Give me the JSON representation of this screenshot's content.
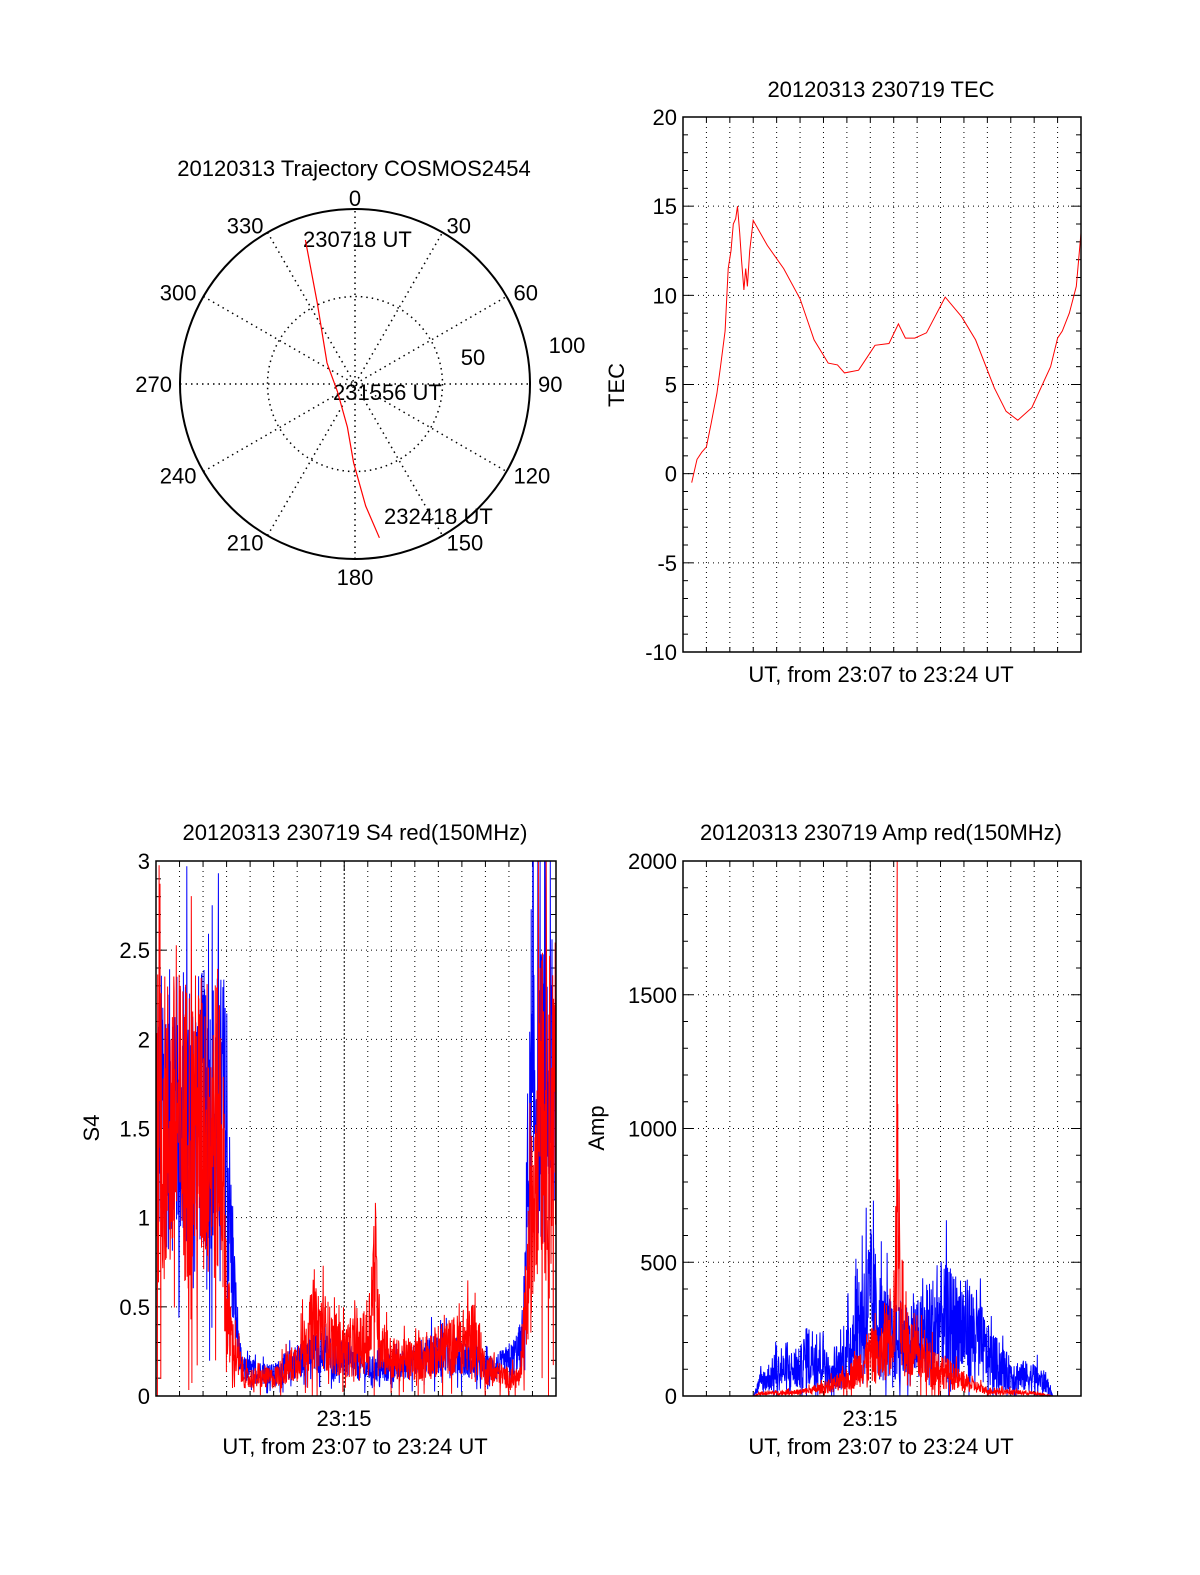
{
  "colors": {
    "red": "#ff0000",
    "blue": "#0000ff",
    "axis": "#000000"
  },
  "chart_data": [
    {
      "type": "polar",
      "title": "20120313 Trajectory COSMOS2454",
      "angle_ticks": [
        "0",
        "30",
        "60",
        "90",
        "120",
        "150",
        "180",
        "210",
        "240",
        "270",
        "300",
        "330"
      ],
      "radial_ticks": [
        "50",
        "100"
      ],
      "rlim": [
        0,
        100
      ],
      "trajectory": [
        [
          341,
          87
        ],
        [
          335,
          51
        ],
        [
          307,
          20
        ],
        [
          245,
          11
        ],
        [
          190,
          25
        ],
        [
          181,
          45
        ],
        [
          175,
          70
        ],
        [
          171,
          89
        ]
      ],
      "annotations": {
        "start": "230718 UT",
        "mid": "231556 UT",
        "end": "232418 UT"
      }
    },
    {
      "type": "line",
      "title": "20120313 230719 TEC",
      "xlabel": "UT, from 23:07 to 23:24 UT",
      "ylabel": "TEC",
      "ylim": [
        -10,
        20
      ],
      "xlim_minutes": [
        0,
        17
      ],
      "yticks": [
        "-10",
        "-5",
        "0",
        "5",
        "10",
        "15",
        "20"
      ],
      "grid": true,
      "series": [
        {
          "name": "TEC",
          "color": "red",
          "x": [
            0.37,
            0.6,
            0.8,
            1.0,
            1.2,
            1.45,
            1.6,
            1.8,
            1.93,
            2.05,
            2.15,
            2.25,
            2.33,
            2.42,
            2.5,
            2.6,
            2.68,
            2.75,
            2.85,
            3.0,
            3.6,
            4.3,
            5.0,
            5.6,
            6.2,
            6.6,
            6.9,
            7.5,
            8.2,
            8.8,
            9.2,
            9.5,
            9.9,
            10.4,
            11.2,
            11.9,
            12.5,
            13.3,
            13.8,
            14.3,
            14.9,
            15.7,
            16.0,
            16.2,
            16.5,
            16.8,
            17.0
          ],
          "y": [
            -0.5,
            0.8,
            1.2,
            1.5,
            2.8,
            4.5,
            6,
            8,
            11.5,
            12.5,
            14,
            14.3,
            15,
            13.5,
            12,
            10.3,
            11.5,
            10.5,
            12.5,
            14.2,
            12.8,
            11.5,
            9.8,
            7.5,
            6.2,
            6.1,
            5.65,
            5.8,
            7.2,
            7.3,
            8.4,
            7.6,
            7.6,
            7.9,
            9.9,
            8.8,
            7.5,
            4.8,
            3.5,
            3.0,
            3.7,
            6.0,
            7.6,
            8.0,
            9.0,
            10.5,
            13.5
          ]
        }
      ]
    },
    {
      "type": "line",
      "title": "20120313 230719 S4 red(150MHz)",
      "xlabel": "UT, from 23:07 to 23:24 UT",
      "ylabel": "S4",
      "ylim": [
        0,
        3
      ],
      "xlim_minutes": [
        0,
        17
      ],
      "xticks": [
        "23:15"
      ],
      "yticks": [
        "0",
        "0.5",
        "1",
        "1.5",
        "2",
        "2.5",
        "3"
      ],
      "grid": true,
      "series": [
        {
          "name": "S4 blue",
          "color": "blue",
          "noise": 0.5,
          "x": [
            0,
            2.9,
            3.3,
            3.6,
            5,
            6,
            7,
            8,
            9,
            10,
            11,
            12,
            13,
            14,
            15,
            15.6,
            15.8,
            16.0,
            17
          ],
          "y": [
            1.6,
            1.6,
            0.6,
            0.15,
            0.12,
            0.2,
            0.25,
            0.2,
            0.15,
            0.15,
            0.2,
            0.25,
            0.22,
            0.15,
            0.18,
            0.3,
            1.2,
            1.7,
            1.7
          ]
        },
        {
          "name": "S4 red",
          "color": "red",
          "noise": 0.6,
          "x": [
            0,
            2.8,
            3.0,
            3.3,
            3.8,
            5,
            6,
            6.5,
            7,
            7.5,
            8,
            9,
            9.2,
            9.3,
            9.5,
            10,
            11,
            12,
            13,
            13.5,
            14,
            15,
            15.5,
            16,
            16.3,
            16.5,
            17
          ],
          "y": [
            1.5,
            1.5,
            0.5,
            0.25,
            0.1,
            0.1,
            0.2,
            0.35,
            0.4,
            0.3,
            0.25,
            0.3,
            0.6,
            0.75,
            0.35,
            0.2,
            0.2,
            0.25,
            0.3,
            0.35,
            0.15,
            0.1,
            0.1,
            1.0,
            2.0,
            1.6,
            1.6
          ]
        }
      ]
    },
    {
      "type": "line",
      "title": "20120313 230719 Amp red(150MHz)",
      "xlabel": "UT, from 23:07 to 23:24 UT",
      "ylabel": "Amp",
      "ylim": [
        0,
        2000
      ],
      "xlim_minutes": [
        0,
        17
      ],
      "xticks": [
        "23:15"
      ],
      "yticks": [
        "0",
        "500",
        "1000",
        "1500",
        "2000"
      ],
      "grid": true,
      "series": [
        {
          "name": "Amp blue",
          "color": "blue",
          "noise": 0.8,
          "x": [
            0,
            3.0,
            3.3,
            4,
            5,
            5.3,
            6,
            6.3,
            7,
            7.5,
            8,
            8.5,
            9,
            10,
            11,
            12,
            12.5,
            13,
            14,
            15,
            15.5,
            15.8,
            17
          ],
          "y": [
            0,
            0,
            50,
            90,
            100,
            150,
            140,
            60,
            150,
            280,
            350,
            250,
            200,
            200,
            280,
            250,
            230,
            150,
            80,
            70,
            50,
            0,
            0
          ]
        },
        {
          "name": "Amp red",
          "color": "red",
          "noise": 0.7,
          "x": [
            0,
            3.0,
            3.3,
            5,
            6,
            7,
            8,
            8.5,
            9.0,
            9.1,
            9.15,
            9.2,
            9.3,
            9.5,
            10,
            11,
            12,
            13,
            14,
            15,
            15.8,
            17
          ],
          "y": [
            0,
            0,
            10,
            15,
            30,
            60,
            150,
            150,
            300,
            450,
            1600,
            600,
            350,
            200,
            150,
            100,
            50,
            20,
            15,
            10,
            0,
            0
          ]
        }
      ]
    }
  ]
}
